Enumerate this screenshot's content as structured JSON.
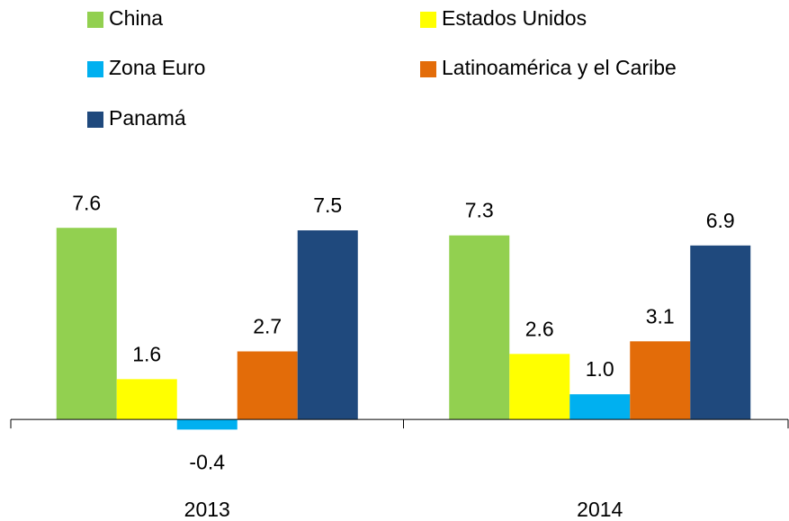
{
  "chart_data": {
    "type": "bar",
    "categories": [
      "2013",
      "2014"
    ],
    "series": [
      {
        "name": "China",
        "color": "#92d050",
        "values": [
          7.6,
          7.3
        ],
        "value_labels": [
          "7.6",
          "7.3"
        ]
      },
      {
        "name": "Estados Unidos",
        "color": "#ffff00",
        "values": [
          1.6,
          2.6
        ],
        "value_labels": [
          "1.6",
          "2.6"
        ]
      },
      {
        "name": "Zona Euro",
        "color": "#00b0f0",
        "values": [
          -0.4,
          1.0
        ],
        "value_labels": [
          "-0.4",
          "1.0"
        ]
      },
      {
        "name": "Latinoamérica y el Caribe",
        "color": "#e36c09",
        "values": [
          2.7,
          3.1
        ],
        "value_labels": [
          "2.7",
          "3.1"
        ]
      },
      {
        "name": "Panamá",
        "color": "#1f497d",
        "values": [
          7.5,
          6.9
        ],
        "value_labels": [
          "7.5",
          "6.9"
        ]
      }
    ],
    "ylim": [
      -0.6,
      8
    ]
  }
}
